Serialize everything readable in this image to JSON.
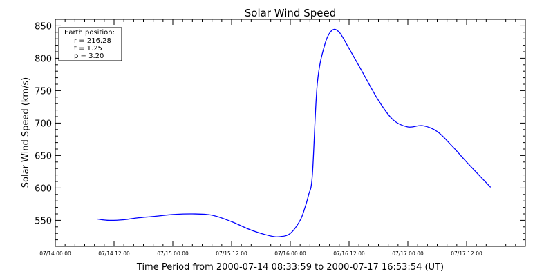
{
  "chart_data": {
    "type": "line",
    "title": "Solar Wind Speed",
    "xlabel": "Time Period from 2000-07-14 08:33:59 to 2000-07-17 16:53:54 (UT)",
    "ylabel": "Solar Wind Speed (km/s)",
    "xlim": [
      "2000-07-14 00:00",
      "2000-07-18 00:00"
    ],
    "ylim": [
      510,
      860
    ],
    "x_ticks": [
      "07/14 00:00",
      "07/14 12:00",
      "07/15 00:00",
      "07/15 12:00",
      "07/16 00:00",
      "07/16 12:00",
      "07/17 00:00",
      "07/17 12:00"
    ],
    "y_ticks": [
      550,
      600,
      650,
      700,
      750,
      800,
      850
    ],
    "grid": false,
    "line_color": "#0000ff",
    "legend": {
      "placement": "top-left",
      "title": "Earth position:",
      "lines": [
        "r = 216.28",
        "t = 1.25",
        "p = 3.20"
      ]
    },
    "series": [
      {
        "x": [
          "2000-07-14 08:34",
          "2000-07-14 11:00",
          "2000-07-14 14:00",
          "2000-07-14 17:00",
          "2000-07-14 20:00",
          "2000-07-15 00:00",
          "2000-07-15 04:00",
          "2000-07-15 08:00",
          "2000-07-15 12:00",
          "2000-07-15 16:00",
          "2000-07-15 20:00",
          "2000-07-15 22:00",
          "2000-07-16 00:00",
          "2000-07-16 02:00",
          "2000-07-16 03:00",
          "2000-07-16 03:45",
          "2000-07-16 04:30",
          "2000-07-16 05:30",
          "2000-07-16 07:00",
          "2000-07-16 08:30",
          "2000-07-16 10:00",
          "2000-07-16 12:00",
          "2000-07-16 15:00",
          "2000-07-16 18:00",
          "2000-07-16 21:00",
          "2000-07-17 00:00",
          "2000-07-17 03:00",
          "2000-07-17 06:00",
          "2000-07-17 09:00",
          "2000-07-17 12:00",
          "2000-07-17 16:54"
        ],
        "y": [
          552,
          550,
          551,
          554,
          556,
          559,
          560,
          558,
          548,
          535,
          526,
          525,
          530,
          550,
          570,
          590,
          620,
          760,
          820,
          843,
          840,
          815,
          775,
          735,
          705,
          694,
          696,
          687,
          665,
          640,
          601
        ]
      }
    ]
  }
}
